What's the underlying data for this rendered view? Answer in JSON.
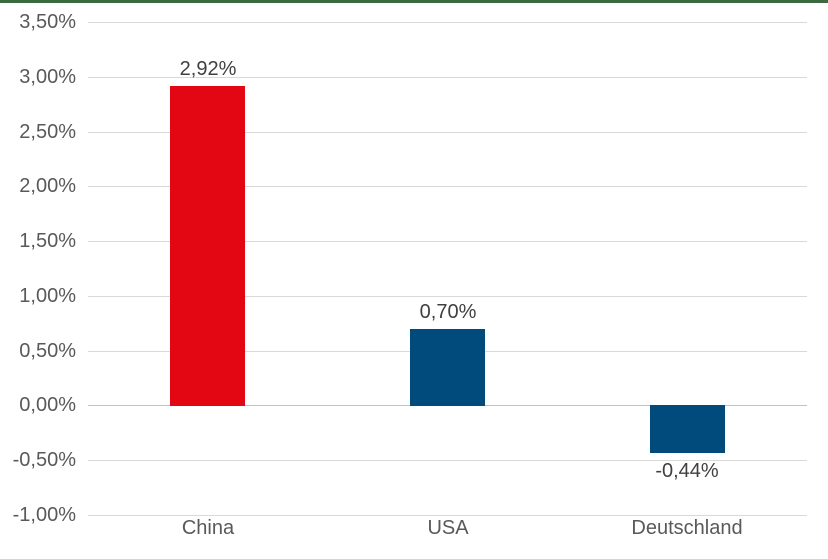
{
  "chart_data": {
    "type": "bar",
    "categories": [
      "China",
      "USA",
      "Deutschland"
    ],
    "values": [
      2.92,
      0.7,
      -0.44
    ],
    "value_labels": [
      "2,92%",
      "0,70%",
      "-0,44%"
    ],
    "bar_colors": [
      "#e30613",
      "#004a7c",
      "#004a7c"
    ],
    "title": "",
    "xlabel": "",
    "ylabel": "",
    "ylim": [
      -1.0,
      3.5
    ],
    "ytick_values": [
      3.5,
      3.0,
      2.5,
      2.0,
      1.5,
      1.0,
      0.5,
      0.0,
      -0.5,
      -1.0
    ],
    "ytick_labels": [
      "3,50%",
      "3,00%",
      "2,50%",
      "2,00%",
      "1,50%",
      "1,00%",
      "0,50%",
      "0,00%",
      "-0,50%",
      "-1,00%"
    ],
    "grid": true,
    "legend": false
  },
  "colors": {
    "background": "#ffffff",
    "top_border": "#3c6a40",
    "gridline": "#d9d9d9",
    "zero_line": "#c2c2c2",
    "tick_text": "#595959",
    "category_text": "#595959",
    "data_label_text": "#404040"
  }
}
